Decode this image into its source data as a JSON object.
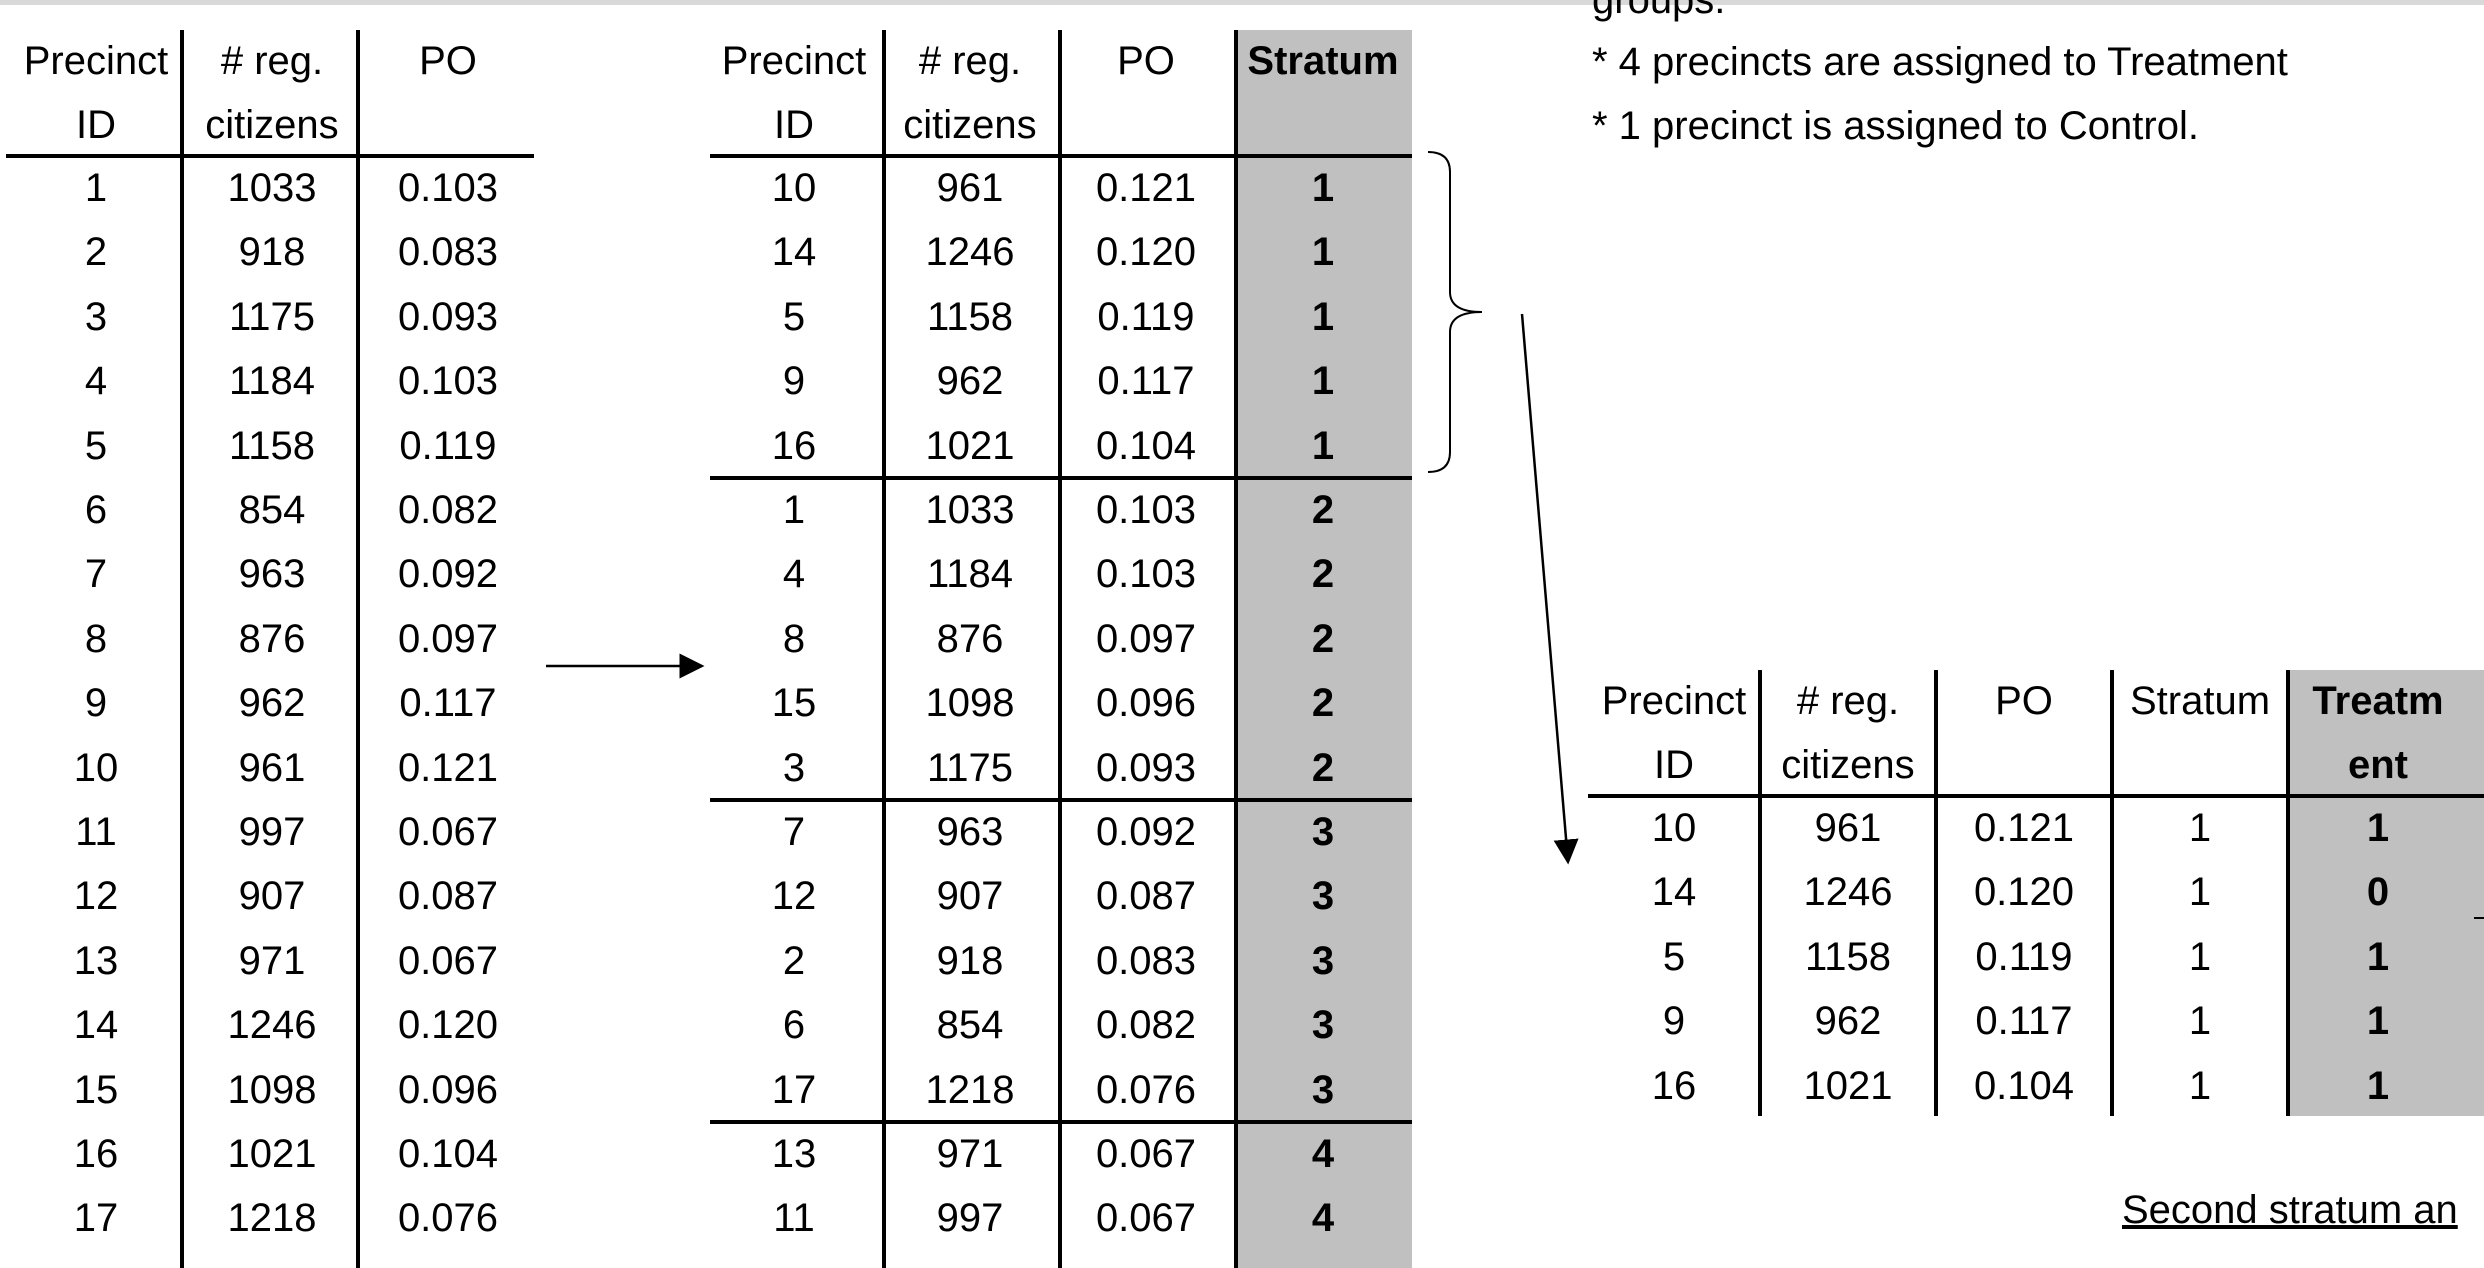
{
  "headers": {
    "id_line1": "Precinct",
    "id_line2": "ID",
    "reg_line1": "# reg.",
    "reg_line2": "citizens",
    "po": "PO",
    "stratum": "Stratum",
    "treat_line1": "Treatm",
    "treat_line2": "ent"
  },
  "table_original": {
    "rows": [
      {
        "id": "1",
        "reg": "1033",
        "po": "0.103"
      },
      {
        "id": "2",
        "reg": "918",
        "po": "0.083"
      },
      {
        "id": "3",
        "reg": "1175",
        "po": "0.093"
      },
      {
        "id": "4",
        "reg": "1184",
        "po": "0.103"
      },
      {
        "id": "5",
        "reg": "1158",
        "po": "0.119"
      },
      {
        "id": "6",
        "reg": "854",
        "po": "0.082"
      },
      {
        "id": "7",
        "reg": "963",
        "po": "0.092"
      },
      {
        "id": "8",
        "reg": "876",
        "po": "0.097"
      },
      {
        "id": "9",
        "reg": "962",
        "po": "0.117"
      },
      {
        "id": "10",
        "reg": "961",
        "po": "0.121"
      },
      {
        "id": "11",
        "reg": "997",
        "po": "0.067"
      },
      {
        "id": "12",
        "reg": "907",
        "po": "0.087"
      },
      {
        "id": "13",
        "reg": "971",
        "po": "0.067"
      },
      {
        "id": "14",
        "reg": "1246",
        "po": "0.120"
      },
      {
        "id": "15",
        "reg": "1098",
        "po": "0.096"
      },
      {
        "id": "16",
        "reg": "1021",
        "po": "0.104"
      },
      {
        "id": "17",
        "reg": "1218",
        "po": "0.076"
      }
    ]
  },
  "table_stratified": {
    "rows": [
      {
        "id": "10",
        "reg": "961",
        "po": "0.121",
        "stratum": "1"
      },
      {
        "id": "14",
        "reg": "1246",
        "po": "0.120",
        "stratum": "1"
      },
      {
        "id": "5",
        "reg": "1158",
        "po": "0.119",
        "stratum": "1"
      },
      {
        "id": "9",
        "reg": "962",
        "po": "0.117",
        "stratum": "1"
      },
      {
        "id": "16",
        "reg": "1021",
        "po": "0.104",
        "stratum": "1"
      },
      {
        "id": "1",
        "reg": "1033",
        "po": "0.103",
        "stratum": "2"
      },
      {
        "id": "4",
        "reg": "1184",
        "po": "0.103",
        "stratum": "2"
      },
      {
        "id": "8",
        "reg": "876",
        "po": "0.097",
        "stratum": "2"
      },
      {
        "id": "15",
        "reg": "1098",
        "po": "0.096",
        "stratum": "2"
      },
      {
        "id": "3",
        "reg": "1175",
        "po": "0.093",
        "stratum": "2"
      },
      {
        "id": "7",
        "reg": "963",
        "po": "0.092",
        "stratum": "3"
      },
      {
        "id": "12",
        "reg": "907",
        "po": "0.087",
        "stratum": "3"
      },
      {
        "id": "2",
        "reg": "918",
        "po": "0.083",
        "stratum": "3"
      },
      {
        "id": "6",
        "reg": "854",
        "po": "0.082",
        "stratum": "3"
      },
      {
        "id": "17",
        "reg": "1218",
        "po": "0.076",
        "stratum": "3"
      },
      {
        "id": "13",
        "reg": "971",
        "po": "0.067",
        "stratum": "4"
      },
      {
        "id": "11",
        "reg": "997",
        "po": "0.067",
        "stratum": "4"
      }
    ]
  },
  "table_treatment": {
    "rows": [
      {
        "id": "10",
        "reg": "961",
        "po": "0.121",
        "stratum": "1",
        "treatment": "1"
      },
      {
        "id": "14",
        "reg": "1246",
        "po": "0.120",
        "stratum": "1",
        "treatment": "0"
      },
      {
        "id": "5",
        "reg": "1158",
        "po": "0.119",
        "stratum": "1",
        "treatment": "1"
      },
      {
        "id": "9",
        "reg": "962",
        "po": "0.117",
        "stratum": "1",
        "treatment": "1"
      },
      {
        "id": "16",
        "reg": "1021",
        "po": "0.104",
        "stratum": "1",
        "treatment": "1"
      }
    ]
  },
  "notes": {
    "cut_top": "groups.",
    "line_treatment": "* 4 precincts are assigned to Treatment",
    "line_control": "* 1 precinct is assigned to Control.",
    "second_stratum": "Second stratum an"
  }
}
